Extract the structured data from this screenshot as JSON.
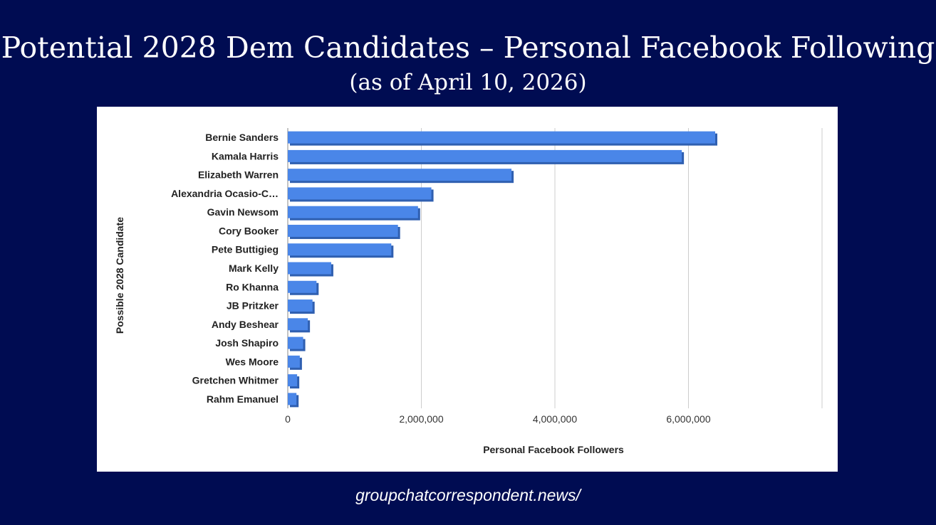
{
  "title": "Potential 2028 Dem Candidates – Personal Facebook Following",
  "subtitle": "(as of April 10, 2026)",
  "footer": "groupchatcorrespondent.news/",
  "colors": {
    "background": "#000c52",
    "bar": "#4a86e8",
    "bar_shade": "#2f5fb0"
  },
  "chart_data": {
    "type": "bar",
    "orientation": "horizontal",
    "xlabel": "Personal Facebook Followers",
    "ylabel": "Possible 2028 Candidate",
    "xlim": [
      0,
      8000000
    ],
    "xticks": [
      0,
      2000000,
      4000000,
      6000000
    ],
    "xtick_labels": [
      "0",
      "2,000,000",
      "4,000,000",
      "6,000,000"
    ],
    "grid": true,
    "legend": "none",
    "categories": [
      "Bernie Sanders",
      "Kamala Harris",
      "Elizabeth Warren",
      "Alexandria Ocasio-C…",
      "Gavin Newsom",
      "Cory Booker",
      "Pete Buttigieg",
      "Mark Kelly",
      "Ro Khanna",
      "JB Pritzker",
      "Andy Beshear",
      "Josh Shapiro",
      "Wes Moore",
      "Gretchen Whitmer",
      "Rahm Emanuel"
    ],
    "values": [
      6400000,
      5900000,
      3350000,
      2150000,
      1950000,
      1650000,
      1550000,
      650000,
      430000,
      370000,
      300000,
      230000,
      180000,
      140000,
      130000
    ]
  }
}
